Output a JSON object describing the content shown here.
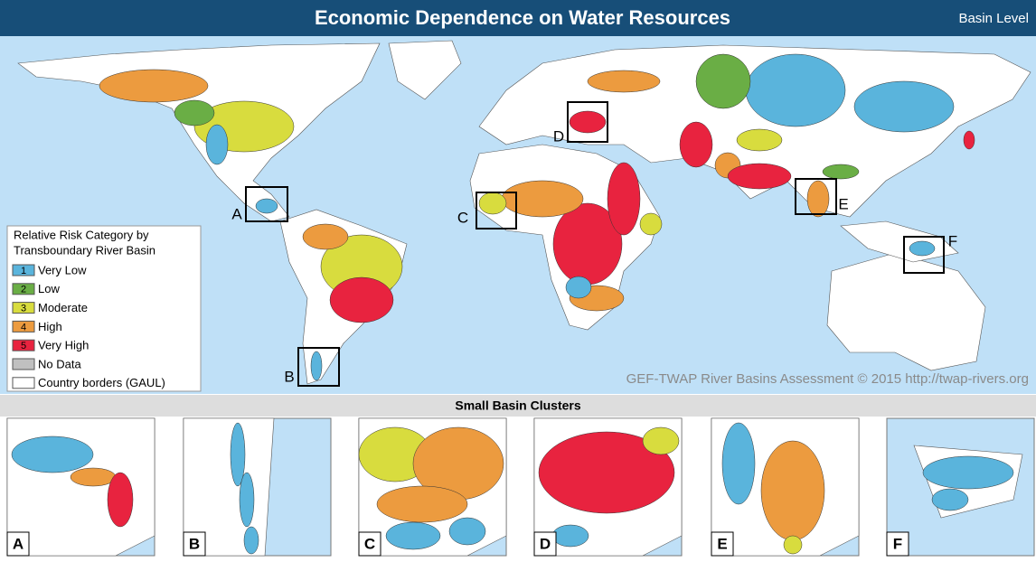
{
  "header": {
    "title": "Economic Dependence on Water Resources",
    "level": "Basin Level"
  },
  "legend": {
    "title_lines": [
      "Relative Risk Category by",
      "Transboundary River Basin"
    ],
    "items": [
      {
        "code": "1",
        "label": "Very Low",
        "color": "#5ab4dc"
      },
      {
        "code": "2",
        "label": "Low",
        "color": "#6aae45"
      },
      {
        "code": "3",
        "label": "Moderate",
        "color": "#d8dc3e"
      },
      {
        "code": "4",
        "label": "High",
        "color": "#ec9b3f"
      },
      {
        "code": "5",
        "label": "Very High",
        "color": "#e8233f"
      },
      {
        "label": "No Data",
        "color": "#c0c0c0"
      },
      {
        "label": "Country borders (GAUL)",
        "color": "#ffffff"
      }
    ]
  },
  "map": {
    "clusters": [
      "A",
      "B",
      "C",
      "D",
      "E",
      "F"
    ],
    "credit": "GEF-TWAP River Basins Assessment © 2015 http://twap-rivers.org"
  },
  "panels": {
    "title": "Small Basin Clusters",
    "labels": [
      "A",
      "B",
      "C",
      "D",
      "E",
      "F"
    ]
  }
}
